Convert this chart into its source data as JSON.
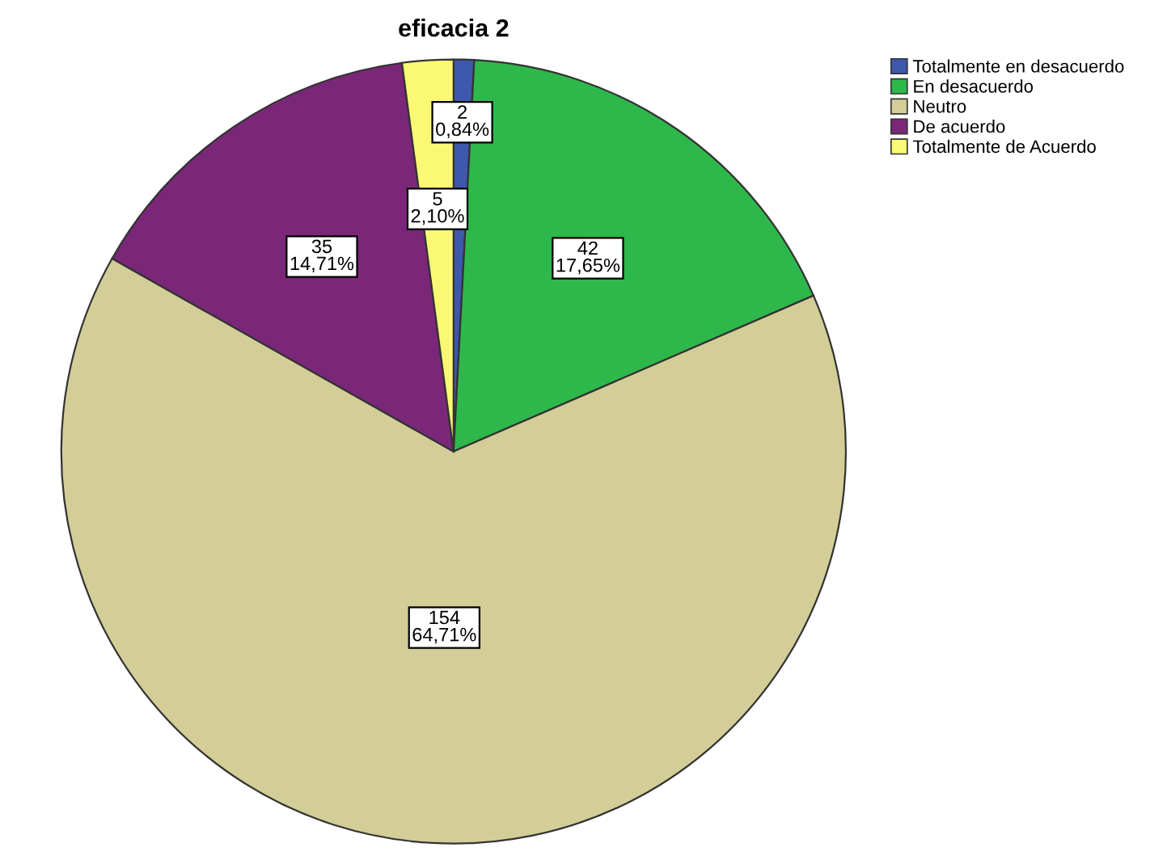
{
  "chart_data": {
    "type": "pie",
    "title": "eficacia 2",
    "categories": [
      "Totalmente en desacuerdo",
      "En desacuerdo",
      "Neutro",
      "De acuerdo",
      "Totalmente de Acuerdo"
    ],
    "values": [
      2,
      42,
      154,
      35,
      5
    ],
    "colors": [
      "#3e58ac",
      "#2eb84b",
      "#d3ce97",
      "#7b2779",
      "#fbf873"
    ],
    "value_labels": [
      "2\n0,84%",
      "42\n17,65%",
      "154\n64,71%",
      "35\n14,71%",
      "5\n2,10%"
    ],
    "legend": "top right"
  }
}
